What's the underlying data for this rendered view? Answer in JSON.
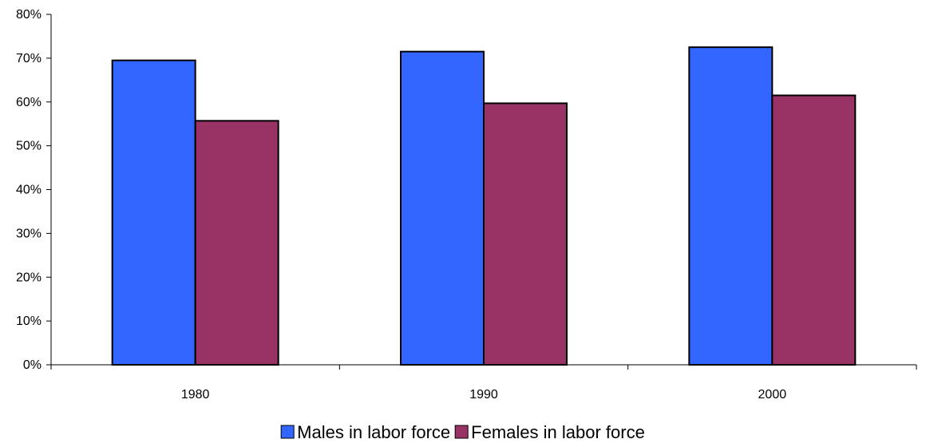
{
  "chart_data": {
    "type": "bar",
    "categories": [
      "1980",
      "1990",
      "2000"
    ],
    "series": [
      {
        "name": "Males in labor force",
        "color": "#3366FF",
        "values": [
          69.5,
          71.5,
          72.5
        ]
      },
      {
        "name": "Females in labor force",
        "color": "#993366",
        "values": [
          55.7,
          59.7,
          61.5
        ]
      }
    ],
    "ylim": [
      0,
      80
    ],
    "yticks": [
      0,
      10,
      20,
      30,
      40,
      50,
      60,
      70,
      80
    ],
    "ytick_labels": [
      "0%",
      "10%",
      "20%",
      "30%",
      "40%",
      "50%",
      "60%",
      "70%",
      "80%"
    ],
    "legend_position": "bottom",
    "grid": false,
    "title": "",
    "xlabel": "",
    "ylabel": ""
  }
}
